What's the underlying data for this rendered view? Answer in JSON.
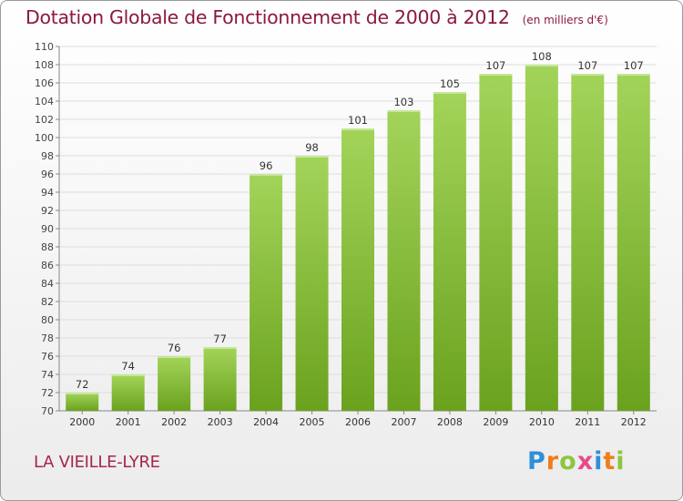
{
  "title": "Dotation Globale de Fonctionnement de 2000 à 2012",
  "subtitle": "(en milliers d'€)",
  "commune": "LA VIEILLE-LYRE",
  "logo": {
    "letters": [
      "P",
      "r",
      "o",
      "x",
      "i",
      "t",
      "i"
    ],
    "colors": [
      "#2f8fd8",
      "#ef7d1a",
      "#8cc63e",
      "#e84a8a",
      "#2f8fd8",
      "#ef7d1a",
      "#8cc63e"
    ]
  },
  "colors": {
    "bar_light": "#a3d45a",
    "bar_dark": "#6aa21e",
    "title": "#8b1a3a",
    "grid": "#dddddd"
  },
  "chart_data": {
    "type": "bar",
    "categories": [
      "2000",
      "2001",
      "2002",
      "2003",
      "2004",
      "2005",
      "2006",
      "2007",
      "2008",
      "2009",
      "2010",
      "2011",
      "2012"
    ],
    "values": [
      72,
      74,
      76,
      77,
      96,
      98,
      101,
      103,
      105,
      107,
      108,
      107,
      107
    ],
    "ylim": [
      70,
      110
    ],
    "yticks": [
      70,
      72,
      74,
      76,
      78,
      80,
      82,
      84,
      86,
      88,
      90,
      92,
      94,
      96,
      98,
      100,
      102,
      104,
      106,
      108,
      110
    ],
    "grid": true,
    "data_labels": true
  }
}
